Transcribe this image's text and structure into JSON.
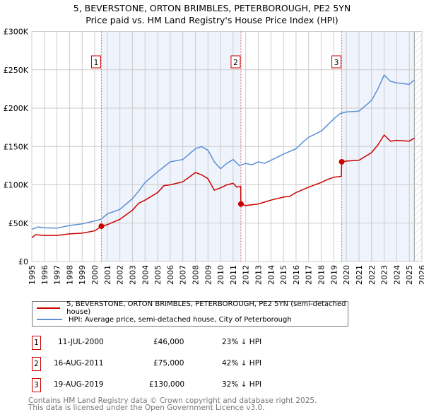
{
  "chart_data": {
    "type": "line",
    "title": "5, BEVERSTONE, ORTON BRIMBLES, PETERBOROUGH, PE2 5YN",
    "subtitle": "Price paid vs. HM Land Registry's House Price Index (HPI)",
    "xlim": [
      1995,
      2026
    ],
    "ylim": [
      0,
      300000
    ],
    "y_ticks": [
      {
        "v": 0,
        "label": "£0"
      },
      {
        "v": 50000,
        "label": "£50K"
      },
      {
        "v": 100000,
        "label": "£100K"
      },
      {
        "v": 150000,
        "label": "£150K"
      },
      {
        "v": 200000,
        "label": "£200K"
      },
      {
        "v": 250000,
        "label": "£250K"
      },
      {
        "v": 300000,
        "label": "£300K"
      }
    ],
    "x_ticks": [
      "1995",
      "1996",
      "1997",
      "1998",
      "1999",
      "2000",
      "2001",
      "2002",
      "2003",
      "2004",
      "2005",
      "2006",
      "2007",
      "2008",
      "2009",
      "2010",
      "2011",
      "2012",
      "2013",
      "2014",
      "2015",
      "2016",
      "2017",
      "2018",
      "2019",
      "2020",
      "2021",
      "2022",
      "2023",
      "2024",
      "2025",
      "2026"
    ],
    "grid": true,
    "shaded_ranges": [
      [
        2000.53,
        2011.62
      ],
      [
        2019.63,
        2025.4
      ]
    ],
    "hatched_from": 2025.4,
    "series": [
      {
        "name": "5, BEVERSTONE, ORTON BRIMBLES, PETERBOROUGH, PE2 5YN (semi-detached house)",
        "color": "#cc0000",
        "x": [
          1995,
          1995.3,
          1996,
          1997,
          1998,
          1999,
          2000,
          2000.53,
          2001,
          2002,
          2003,
          2003.5,
          2004,
          2005,
          2005.5,
          2006,
          2007,
          2007.5,
          2008,
          2008.5,
          2009,
          2009.5,
          2010,
          2010.5,
          2011,
          2011.3,
          2011.6,
          2011.62,
          2012,
          2013,
          2014,
          2015,
          2015.5,
          2016,
          2017,
          2018,
          2018.5,
          2019,
          2019.6,
          2019.63,
          2020,
          2021,
          2021.5,
          2022,
          2022.5,
          2023,
          2023.5,
          2024,
          2025,
          2025.4
        ],
        "y": [
          31000,
          35000,
          34000,
          34000,
          36000,
          37000,
          40000,
          46000,
          48000,
          55000,
          67000,
          76000,
          80000,
          90000,
          99000,
          100000,
          104000,
          110000,
          116000,
          113000,
          108000,
          93000,
          96000,
          100000,
          102000,
          97000,
          98000,
          75000,
          73000,
          75000,
          80000,
          84000,
          85000,
          90000,
          97000,
          103000,
          107000,
          110000,
          111000,
          130000,
          131000,
          132000,
          137000,
          142000,
          152000,
          165000,
          157000,
          158000,
          157000,
          161000
        ]
      },
      {
        "name": "HPI: Average price, semi-detached house, City of Peterborough",
        "color": "#5b8fd6",
        "x": [
          1995,
          1995.5,
          1996,
          1997,
          1998,
          1999,
          2000,
          2000.5,
          2001,
          2002,
          2003,
          2003.5,
          2004,
          2005,
          2006,
          2007,
          2007.5,
          2008,
          2008.5,
          2009,
          2009.5,
          2010,
          2010.5,
          2011,
          2011.5,
          2012,
          2012.5,
          2013,
          2013.5,
          2014,
          2015,
          2016,
          2016.5,
          2017,
          2018,
          2018.5,
          2019,
          2019.5,
          2020,
          2021,
          2021.5,
          2022,
          2022.5,
          2023,
          2023.5,
          2024,
          2024.5,
          2025,
          2025.4
        ],
        "y": [
          42000,
          45000,
          44000,
          43500,
          47000,
          49000,
          53000,
          55000,
          62000,
          68000,
          82000,
          92000,
          103000,
          117000,
          130000,
          133000,
          140000,
          147000,
          150000,
          145000,
          130000,
          121000,
          128000,
          133000,
          125000,
          128000,
          126000,
          130000,
          128000,
          132000,
          140000,
          147000,
          155000,
          162000,
          170000,
          178000,
          186000,
          193000,
          195000,
          196000,
          203000,
          210000,
          225000,
          243000,
          235000,
          233000,
          232000,
          231000,
          237000
        ]
      }
    ],
    "sales": [
      {
        "n": "1",
        "x": 2000.53,
        "y": 46000,
        "date": "11-JUL-2000",
        "price": "£46,000",
        "delta": "23% ↓ HPI"
      },
      {
        "n": "2",
        "x": 2011.62,
        "y": 75000,
        "date": "16-AUG-2011",
        "price": "£75,000",
        "delta": "42% ↓ HPI"
      },
      {
        "n": "3",
        "x": 2019.63,
        "y": 130000,
        "date": "19-AUG-2019",
        "price": "£130,000",
        "delta": "32% ↓ HPI"
      }
    ]
  },
  "footer": {
    "line1": "Contains HM Land Registry data © Crown copyright and database right 2025.",
    "line2": "This data is licensed under the Open Government Licence v3.0."
  }
}
